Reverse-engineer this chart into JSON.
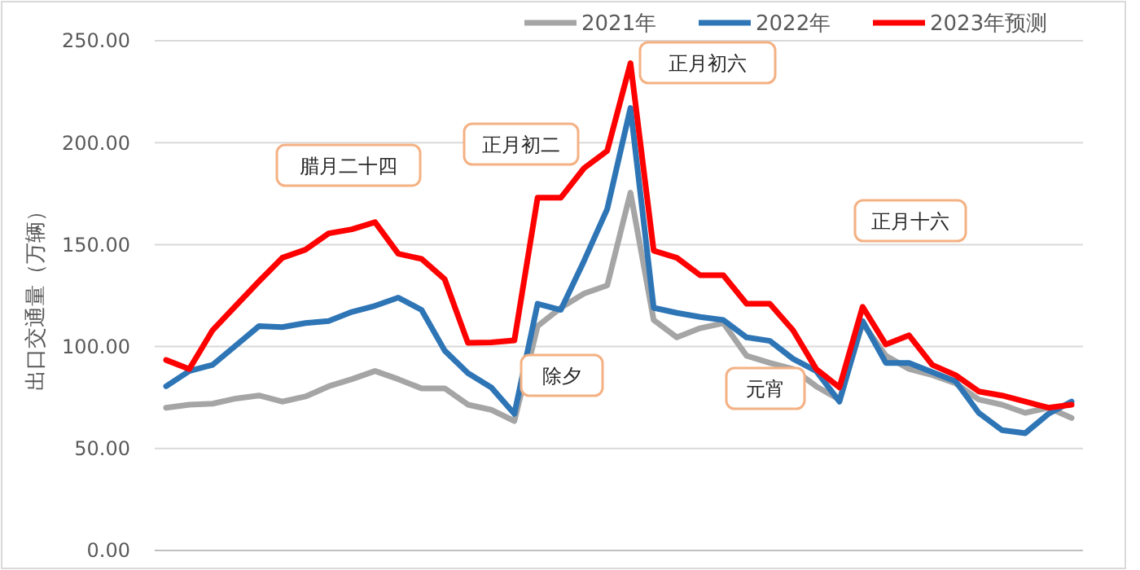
{
  "chart_data": {
    "type": "line",
    "ylabel": "出口交通量（万辆）",
    "categories": [
      null,
      null,
      null,
      null,
      null,
      null,
      null,
      null,
      null,
      null,
      null,
      null,
      null,
      null,
      null,
      null,
      null,
      null,
      null,
      null,
      null,
      null,
      null,
      null,
      null,
      null,
      null,
      null,
      null,
      null,
      null,
      null,
      null,
      null,
      null,
      null,
      null,
      null,
      null,
      null
    ],
    "series": [
      {
        "name": "2021年",
        "color": "#a5a5a5",
        "values": [
          70,
          71.5,
          72,
          74.5,
          76,
          73,
          75.5,
          80.5,
          84,
          88,
          84,
          79.5,
          79.5,
          71.5,
          69,
          63.5,
          110,
          119,
          126,
          130,
          175.5,
          113,
          104.5,
          109,
          111.5,
          95.5,
          92,
          89,
          80.5,
          74,
          111.5,
          95.5,
          89,
          86,
          82,
          74,
          71.5,
          67.5,
          70,
          65
        ]
      },
      {
        "name": "2022年",
        "color": "#2e75b6",
        "values": [
          80.5,
          88,
          91,
          100.5,
          110,
          109.5,
          111.5,
          112.5,
          117,
          120,
          124,
          118,
          98,
          87,
          80,
          67,
          121,
          118,
          142,
          167.5,
          217,
          119,
          116.5,
          114.5,
          113,
          104.5,
          102.8,
          94,
          88,
          73,
          112.5,
          92,
          92,
          87.5,
          83,
          67.5,
          59,
          57.5,
          67,
          73
        ]
      },
      {
        "name": "2023年预测",
        "color": "#ff0000",
        "values": [
          93.4,
          89,
          108,
          120,
          132,
          143.5,
          147.5,
          155.5,
          157.5,
          161,
          145.5,
          143,
          133,
          101.8,
          102,
          103,
          173,
          173,
          187.5,
          196,
          239,
          147,
          143.5,
          135,
          135,
          121,
          121,
          108,
          89,
          80,
          119.5,
          101,
          105.5,
          91,
          86,
          78,
          76,
          73,
          70,
          71.5
        ]
      }
    ],
    "ylim": [
      0,
      250
    ],
    "yticks": [
      {
        "value": 0,
        "label": "0.00"
      },
      {
        "value": 50,
        "label": "50.00"
      },
      {
        "value": 100,
        "label": "100.00"
      },
      {
        "value": 150,
        "label": "150.00"
      },
      {
        "value": 200,
        "label": "200.00"
      },
      {
        "value": 250,
        "label": "250.00"
      }
    ],
    "grid": "y",
    "legend": "top right",
    "marker": "none",
    "line_style": "solid",
    "annotations": [
      "腊月二十四",
      "正月初二",
      "除夕",
      "正月初六",
      "元宵",
      "正月十六"
    ]
  }
}
